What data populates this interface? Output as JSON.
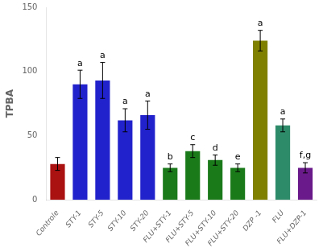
{
  "chart_data": {
    "type": "bar",
    "categories": [
      "Controle",
      "STY-1",
      "STY-5",
      "STY-10",
      "STY-20",
      "FLU+STY-1",
      "FLU+STY-5",
      "FLU+STY-10",
      "FLU+STY-20",
      "DZP -1",
      "FLU",
      "FLU+DZP-1"
    ],
    "values": [
      28,
      90,
      93,
      62,
      66,
      25,
      38,
      31,
      25,
      124,
      58,
      25
    ],
    "errors": [
      5,
      11,
      14,
      9,
      11,
      3,
      5,
      4,
      3,
      8,
      5,
      4
    ],
    "colors": [
      "#aa1111",
      "#2222cc",
      "#2222cc",
      "#2222cc",
      "#2222cc",
      "#1a7a1a",
      "#1a7a1a",
      "#1a7a1a",
      "#1a7a1a",
      "#808000",
      "#2e8b6a",
      "#6a1a8a"
    ],
    "ylabel": "TPBA",
    "ylim": [
      0,
      150
    ],
    "yticks": [
      0,
      50,
      100,
      150
    ],
    "grid": false,
    "annotations": [
      {
        "category": "STY-1",
        "text": "a"
      },
      {
        "category": "STY-5",
        "text": "a"
      },
      {
        "category": "STY-10",
        "text": "a"
      },
      {
        "category": "STY-20",
        "text": "a"
      },
      {
        "category": "FLU+STY-1",
        "text": "b"
      },
      {
        "category": "FLU+STY-5",
        "text": "c"
      },
      {
        "category": "FLU+STY-10",
        "text": "d"
      },
      {
        "category": "FLU+STY-20",
        "text": "e"
      },
      {
        "category": "DZP -1",
        "text": "a"
      },
      {
        "category": "FLU",
        "text": "a"
      },
      {
        "category": "FLU+DZP-1",
        "text": "f,g"
      }
    ]
  }
}
